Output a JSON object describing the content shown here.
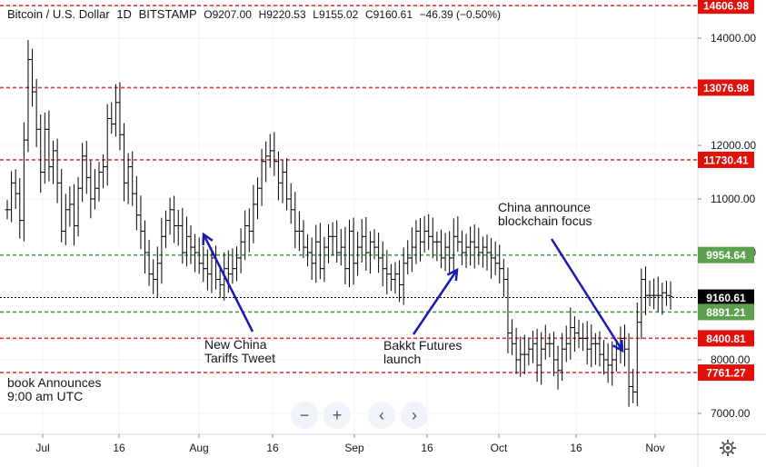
{
  "header": {
    "symbol": "Bitcoin / U.S. Dollar",
    "interval": "1D",
    "exchange": "BITSTAMP",
    "open": "O9207.00",
    "high": "H9220.53",
    "low": "L9155.02",
    "close": "C9160.61",
    "change": "−46.39 (−0.50%)"
  },
  "toolbar": {
    "zoom_out": "−",
    "zoom_in": "+",
    "scroll_left": "‹",
    "scroll_right": "›"
  },
  "colors": {
    "resistance": "#e53935",
    "support": "#43a047",
    "arrow": "#1a1ab8",
    "bars": "#000000",
    "price_label_bg": "#000000"
  },
  "chart_data": {
    "type": "ohlc",
    "y_ticks": [
      7000,
      8000,
      9000,
      10000,
      11000,
      12000,
      14000
    ],
    "y_tick_labels": [
      "7000.00",
      "8000.00",
      "9000.00",
      "10000.00",
      "11000.00",
      "12000.00",
      "14000.00"
    ],
    "x_ticks": [
      "Jul",
      "16",
      "Aug",
      "16",
      "Sep",
      "16",
      "Oct",
      "16",
      "Nov"
    ],
    "ylim": [
      6700,
      14700
    ],
    "horizontal_levels": [
      {
        "value": 14606.98,
        "label": "14606.98",
        "style": "resistance"
      },
      {
        "value": 13076.98,
        "label": "13076.98",
        "style": "resistance"
      },
      {
        "value": 11730.41,
        "label": "11730.41",
        "style": "resistance"
      },
      {
        "value": 9954.64,
        "label": "9954.64",
        "style": "support"
      },
      {
        "value": 9160.61,
        "label": "9160.61",
        "style": "last"
      },
      {
        "value": 8891.21,
        "label": "8891.21",
        "style": "support"
      },
      {
        "value": 8400.81,
        "label": "8400.81",
        "style": "resistance"
      },
      {
        "value": 7761.27,
        "label": "7761.27",
        "style": "resistance"
      }
    ],
    "annotations": [
      {
        "text": [
          "New China",
          "Tariffs Tweet"
        ]
      },
      {
        "text": [
          "Bakkt Futures",
          "launch"
        ]
      },
      {
        "text": [
          "China announce",
          "blockchain focus"
        ]
      },
      {
        "text": [
          "book Announces",
          "9:00 am UTC"
        ]
      }
    ],
    "series": [
      {
        "values": [
          10800,
          11300,
          11100,
          10600,
          12100,
          13600,
          13000,
          12300,
          11500,
          12300,
          11600,
          11900,
          11300,
          10400,
          10800,
          10900,
          10500,
          11200,
          11800,
          11400,
          11000,
          11200,
          11500,
          11600,
          12500,
          12400,
          12800,
          12200,
          11300,
          11600,
          11100,
          10700,
          10400,
          10000,
          9600,
          9500,
          9800,
          10300,
          10600,
          10800,
          10500,
          10500,
          10000,
          10300,
          10100,
          10000,
          9800,
          9700,
          9600,
          9900,
          9500,
          9400,
          9700,
          9600,
          9700,
          9900,
          10200,
          10500,
          10400,
          10900,
          11200,
          11700,
          11800,
          11900,
          11700,
          11300,
          11500,
          11000,
          10800,
          10400,
          10400,
          10100,
          10000,
          9800,
          10200,
          9700,
          10100,
          10300,
          10300,
          10000,
          10100,
          9700,
          10400,
          9800,
          10100,
          10300,
          10000,
          10200,
          10100,
          9900,
          9700,
          9600,
          9500,
          9600,
          9400,
          9800,
          9900,
          10100,
          10400,
          10200,
          10400,
          10300,
          10200,
          10200,
          9900,
          10100,
          9900,
          10300,
          10200,
          10000,
          10100,
          10200,
          10100,
          10000,
          10100,
          10000,
          9900,
          9800,
          9700,
          9500,
          8500,
          8300,
          8000,
          8100,
          8100,
          8200,
          8300,
          7900,
          8200,
          8300,
          8300,
          8000,
          7800,
          8200,
          8300,
          8600,
          8500,
          8400,
          8400,
          8200,
          8300,
          8300,
          8100,
          8000,
          7900,
          8000,
          8200,
          8400,
          8200,
          7500,
          7400,
          8700,
          9500,
          9200,
          9200,
          9200,
          9200,
          9250,
          9200,
          9180
        ]
      }
    ]
  }
}
